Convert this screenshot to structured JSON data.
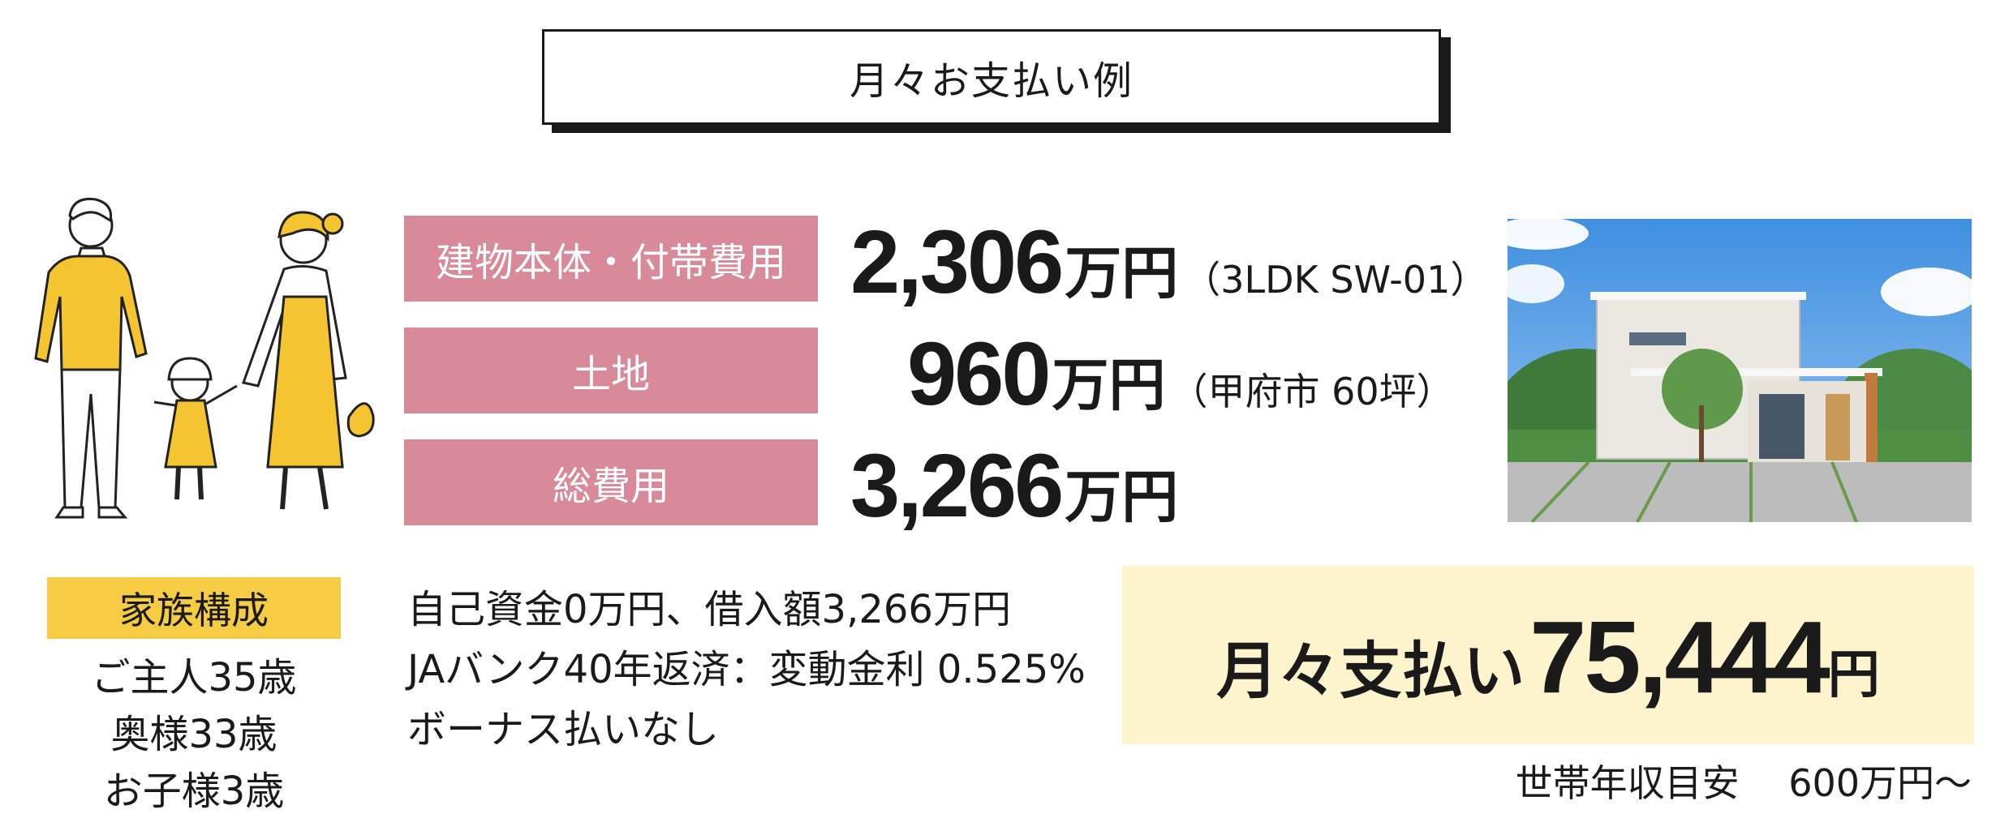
{
  "title": "月々お支払い例",
  "cost_rows": [
    {
      "label": "建物本体・付帯費用",
      "amount": "2,306",
      "unit": "万円",
      "note": "（3LDK  SW-01）"
    },
    {
      "label": "土地",
      "amount": "960",
      "unit": "万円",
      "note": "（甲府市 60坪）"
    },
    {
      "label": "総費用",
      "amount": "3,266",
      "unit": "万円",
      "note": ""
    }
  ],
  "family": {
    "heading": "家族構成",
    "members": [
      "ご主人35歳",
      "奥様33歳",
      "お子様3歳"
    ]
  },
  "conditions": [
    "自己資金0万円、借入額3,266万円",
    "JAバンク40年返済：変動金利 0.525%",
    "ボーナス払いなし"
  ],
  "monthly": {
    "label": "月々支払い",
    "amount": "75,444",
    "unit": "円"
  },
  "income": "世帯年収目安　 600万円～",
  "colors": {
    "label_bg": "#d8899a",
    "family_bg": "#f6cc44",
    "monthly_bg": "#fdf3cc"
  }
}
